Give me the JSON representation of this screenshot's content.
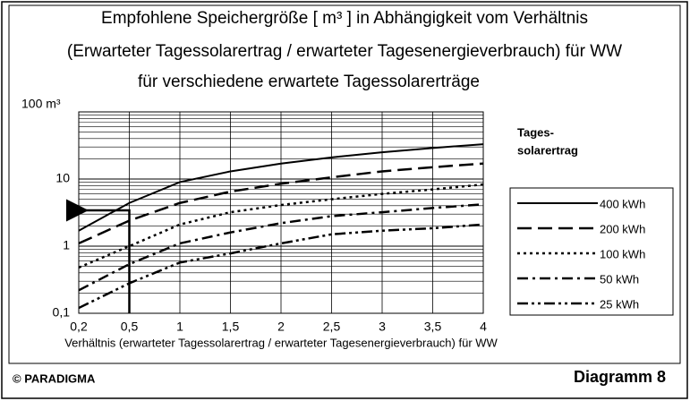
{
  "chart_data": {
    "type": "line",
    "title": [
      "Empfohlene Speichergröße  [ m³ ] in Abhängigkeit vom Verhältnis",
      "(Erwarteter Tagessolarertrag / erwarteter Tagesenergieverbrauch) für WW",
      "für verschiedene erwartete Tagessolarerträge"
    ],
    "x_label": "Verhältnis (erwarteter Tagessolarertrag / erwarteter  Tagesenergieverbrauch) für WW",
    "categories": [
      "0,2",
      "0,5",
      "1",
      "1,5",
      "2",
      "2,5",
      "3",
      "3,5",
      "4"
    ],
    "ylim": [
      0.1,
      100
    ],
    "log_y": true,
    "grid": true,
    "yticks": [
      {
        "value": 0.1,
        "label": "0,1"
      },
      1,
      10,
      {
        "value": 100,
        "label": "100 m³"
      }
    ],
    "legend_title": [
      "Tages-",
      "solarertrag"
    ],
    "series": [
      {
        "name": "400 kWh",
        "color": "#000000",
        "dash": "solid",
        "values": [
          1.7,
          4.4,
          9,
          13,
          17,
          21,
          25,
          29,
          33
        ]
      },
      {
        "name": "200 kWh",
        "color": "#000000",
        "dash": "long",
        "values": [
          1.1,
          2.4,
          4.4,
          6.5,
          8.5,
          10.6,
          13,
          15,
          17
        ]
      },
      {
        "name": "100 kWh",
        "color": "#000000",
        "dash": "dot",
        "values": [
          0.48,
          1.0,
          2.1,
          3.2,
          4.1,
          5,
          6,
          7,
          8.3
        ]
      },
      {
        "name": "50 kWh",
        "color": "#000000",
        "dash": "dashdot",
        "values": [
          0.22,
          0.54,
          1.1,
          1.6,
          2.2,
          2.8,
          3.2,
          3.7,
          4.2
        ]
      },
      {
        "name": "25 kWh",
        "color": "#000000",
        "dash": "dashdotdot",
        "values": [
          0.12,
          0.28,
          0.57,
          0.78,
          1.1,
          1.5,
          1.7,
          1.85,
          2.1
        ]
      }
    ],
    "footer_left": "© PARADIGMA",
    "footer_right": "Diagramm 8"
  }
}
